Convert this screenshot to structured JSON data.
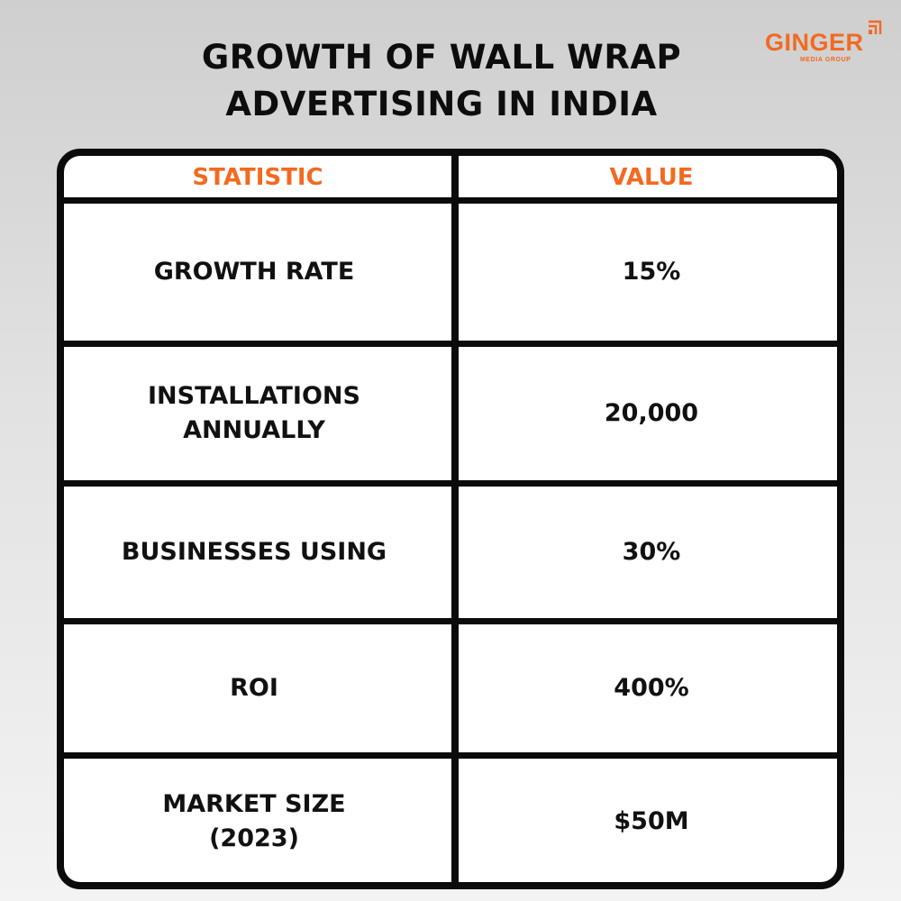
{
  "title": {
    "line1": "GROWTH OF WALL WRAP",
    "line2": "ADVERTISING IN INDIA"
  },
  "logo": {
    "name": "GINGER",
    "subtitle": "MEDIA GROUP",
    "color": "#f26a21",
    "icon": "signal-bars-icon"
  },
  "table": {
    "headers": {
      "statistic": "STATISTIC",
      "value": "VALUE"
    },
    "rows": [
      {
        "statistic": "GROWTH RATE",
        "value": "15%"
      },
      {
        "statistic": "INSTALLATIONS ANNUALLY",
        "value": "20,000"
      },
      {
        "statistic": "BUSINESSES USING",
        "value": "30%"
      },
      {
        "statistic": "ROI",
        "value": "400%"
      },
      {
        "statistic": "MARKET SIZE (2023)",
        "value": "$50M"
      }
    ],
    "header_color": "#f26a21",
    "border_color": "#0b0b0b"
  }
}
